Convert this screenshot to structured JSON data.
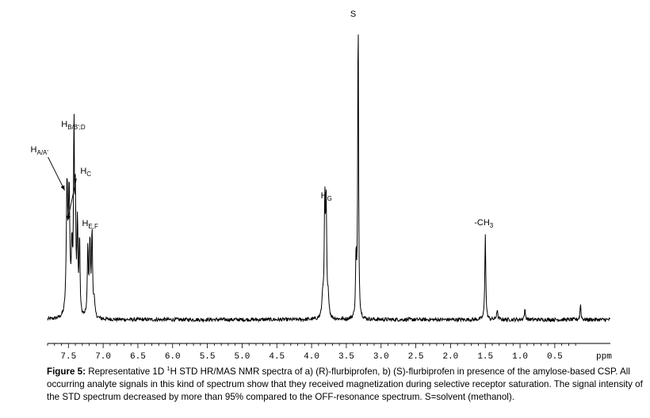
{
  "chart_data": {
    "type": "line",
    "xlabel": "ppm",
    "xlim": [
      7.8,
      -0.3
    ],
    "x_ticks": [
      "7.5",
      "7.0",
      "6.5",
      "6.0",
      "5.5",
      "5.0",
      "4.5",
      "4.0",
      "3.5",
      "3.0",
      "2.5",
      "2.0",
      "1.5",
      "1.0",
      "0.5"
    ],
    "grid": false,
    "baseline": 0,
    "peaks": [
      {
        "ppm": 7.52,
        "intensity": 0.41,
        "width": 0.012
      },
      {
        "ppm": 7.49,
        "intensity": 0.38,
        "width": 0.012
      },
      {
        "ppm": 7.45,
        "intensity": 0.2,
        "width": 0.01
      },
      {
        "ppm": 7.42,
        "intensity": 0.59,
        "width": 0.008
      },
      {
        "ppm": 7.4,
        "intensity": 0.34,
        "width": 0.008
      },
      {
        "ppm": 7.37,
        "intensity": 0.3,
        "width": 0.008
      },
      {
        "ppm": 7.34,
        "intensity": 0.25,
        "width": 0.008
      },
      {
        "ppm": 7.22,
        "intensity": 0.22,
        "width": 0.009
      },
      {
        "ppm": 7.19,
        "intensity": 0.24,
        "width": 0.009
      },
      {
        "ppm": 7.16,
        "intensity": 0.27,
        "width": 0.009
      },
      {
        "ppm": 7.13,
        "intensity": 0.05,
        "width": 0.012
      },
      {
        "ppm": 3.84,
        "intensity": 0.07,
        "width": 0.012
      },
      {
        "ppm": 3.81,
        "intensity": 0.36,
        "width": 0.009
      },
      {
        "ppm": 3.79,
        "intensity": 0.34,
        "width": 0.009
      },
      {
        "ppm": 3.76,
        "intensity": 0.06,
        "width": 0.012
      },
      {
        "ppm": 3.36,
        "intensity": 0.2,
        "width": 0.008
      },
      {
        "ppm": 3.33,
        "intensity": 1.0,
        "width": 0.007
      },
      {
        "ppm": 1.5,
        "intensity": 0.28,
        "width": 0.008
      },
      {
        "ppm": 1.33,
        "intensity": 0.03,
        "width": 0.01
      },
      {
        "ppm": 0.93,
        "intensity": 0.03,
        "width": 0.01
      },
      {
        "ppm": 0.13,
        "intensity": 0.05,
        "width": 0.008
      }
    ],
    "peak_labels": [
      {
        "text": "H",
        "sub": "A/A'",
        "ppm": 7.52
      },
      {
        "text": "H",
        "sub": "B/B';D",
        "ppm": 7.42
      },
      {
        "text": "H",
        "sub": "C",
        "ppm": 7.34
      },
      {
        "text": "H",
        "sub": "E,F",
        "ppm": 7.19
      },
      {
        "text": "H",
        "sub": "G",
        "ppm": 3.8
      },
      {
        "text": "S",
        "sub": "",
        "ppm": 3.33
      },
      {
        "text": "-CH",
        "sub": "3",
        "ppm": 1.5
      }
    ]
  },
  "caption": {
    "label": "Figure 5:",
    "part1": " Representative 1D ",
    "superscript": "1",
    "part2": "H STD HR/MAS NMR spectra of a) (R)-flurbiprofen, b) (S)-flurbiprofen in presence of the amylose-based CSP. All occurring analyte signals in this kind of spectrum show that they received magnetization during selective receptor saturation. The signal intensity of the STD spectrum decreased by more than 95% compared to the OFF-resonance spectrum. S=solvent (methanol)."
  }
}
